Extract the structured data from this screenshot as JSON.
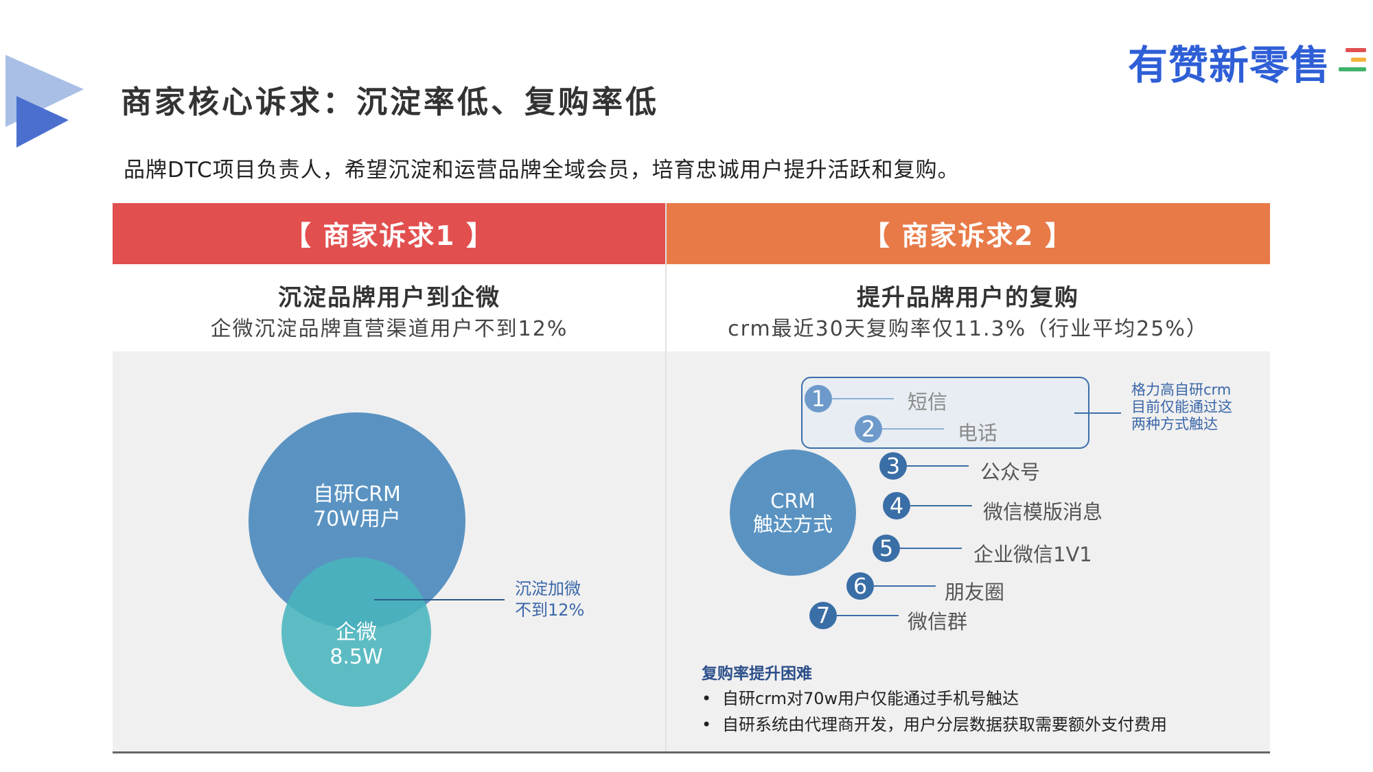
{
  "brand": {
    "name": "有赞新零售",
    "bar_colors": [
      "#e24f4f",
      "#f2b33d",
      "#3fb36b"
    ]
  },
  "title": "商家核心诉求：沉淀率低、复购率低",
  "subtitle": "品牌DTC项目负责人，希望沉淀和运营品牌全域会员，培育忠诚用户提升活跃和复购。",
  "colors": {
    "left_header": "#e24f4f",
    "right_header": "#e87a48",
    "accent_blue": "#3a6ea6"
  },
  "left": {
    "header": "【 商家诉求1 】",
    "sub_title": "沉淀品牌用户到企微",
    "sub_desc": "企微沉淀品牌直营渠道用户不到12%",
    "venn": {
      "crm_line1": "自研CRM",
      "crm_line2": "70W用户",
      "qw_line1": "企微",
      "qw_line2": "8.5W",
      "note_line1": "沉淀加微",
      "note_line2": "不到12%"
    }
  },
  "right": {
    "header": "【 商家诉求2 】",
    "sub_title": "提升品牌用户的复购",
    "sub_desc": "crm最近30天复购率仅11.3%（行业平均25%）",
    "crm_line1": "CRM",
    "crm_line2": "触达方式",
    "channels": [
      {
        "num": "1",
        "label": "短信"
      },
      {
        "num": "2",
        "label": "电话"
      },
      {
        "num": "3",
        "label": "公众号"
      },
      {
        "num": "4",
        "label": "微信模版消息"
      },
      {
        "num": "5",
        "label": "企业微信1V1"
      },
      {
        "num": "6",
        "label": "朋友圈"
      },
      {
        "num": "7",
        "label": "微信群"
      }
    ],
    "box_note": [
      "格力高自研crm",
      "目前仅能通过这",
      "两种方式触达"
    ],
    "difficulty_title": "复购率提升困难",
    "difficulties": [
      "自研crm对70w用户仅能通过手机号触达",
      "自研系统由代理商开发，用户分层数据获取需要额外支付费用"
    ]
  }
}
